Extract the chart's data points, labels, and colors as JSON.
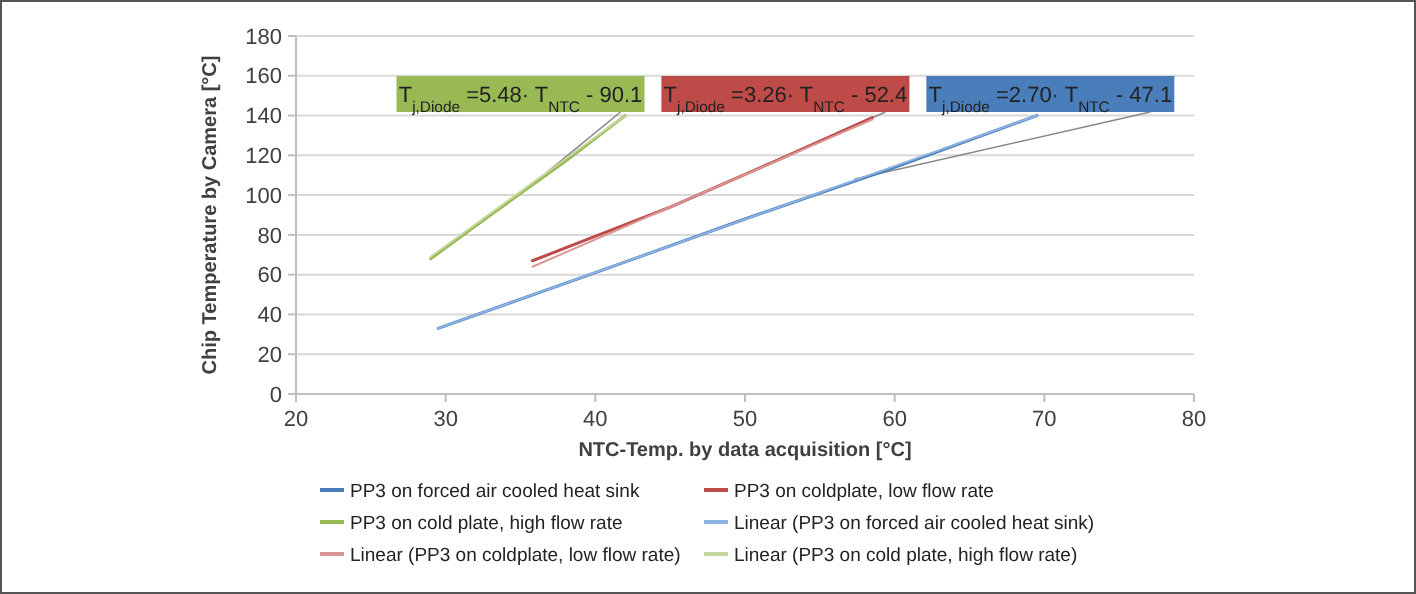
{
  "chart_data": {
    "type": "line",
    "xlabel": "NTC-Temp. by data acquisition [°C]",
    "ylabel": "Chip Temperature by Camera [°C]",
    "xlim": [
      20,
      80
    ],
    "xticks": [
      20,
      30,
      40,
      50,
      60,
      70,
      80
    ],
    "ylim": [
      0,
      180
    ],
    "yticks": [
      0,
      20,
      40,
      60,
      80,
      100,
      120,
      140,
      160,
      180
    ],
    "grid": "y",
    "legend": "bottom",
    "marker": "none",
    "series": [
      {
        "name": "PP3 on forced air cooled heat sink",
        "color": "#4a7ebb",
        "x": [
          29.5,
          40,
          50,
          60,
          69.5
        ],
        "values": [
          33,
          61,
          88,
          114,
          140
        ]
      },
      {
        "name": "PP3 on coldplate, low flow rate",
        "color": "#be4b48",
        "x": [
          35.8,
          45,
          52,
          58.5
        ],
        "values": [
          67,
          94,
          117,
          139
        ]
      },
      {
        "name": "PP3 on cold plate, high flow rate",
        "color": "#98b954",
        "x": [
          29,
          33,
          38,
          42
        ],
        "values": [
          68,
          90,
          117,
          140
        ]
      },
      {
        "name": "Linear (PP3 on forced air cooled heat sink)",
        "color": "#8eb4e3",
        "x": [
          29.5,
          69.5
        ],
        "values": [
          33,
          140
        ]
      },
      {
        "name": "Linear (PP3 on coldplate, low flow rate)",
        "color": "#d99694",
        "x": [
          35.8,
          58.5
        ],
        "values": [
          64,
          138
        ]
      },
      {
        "name": "Linear (PP3 on cold plate, high flow rate)",
        "color": "#c3d69b",
        "x": [
          29,
          42
        ],
        "values": [
          69,
          140
        ]
      }
    ],
    "annotations": [
      {
        "text": "T$_{j,Diode}$ =5.48· T$_{NTC}$ - 90.1",
        "x": 36.7,
        "y": 111
      },
      {
        "text": "T$_{j,Diode}$ =3.26· T$_{NTC}$ - 52.4",
        "x": 47.4,
        "y": 102
      },
      {
        "text": "T$_{j,Diode}$ =2.70· T$_{NTC}$ - 47.1",
        "x": 57.3,
        "y": 108
      }
    ]
  }
}
